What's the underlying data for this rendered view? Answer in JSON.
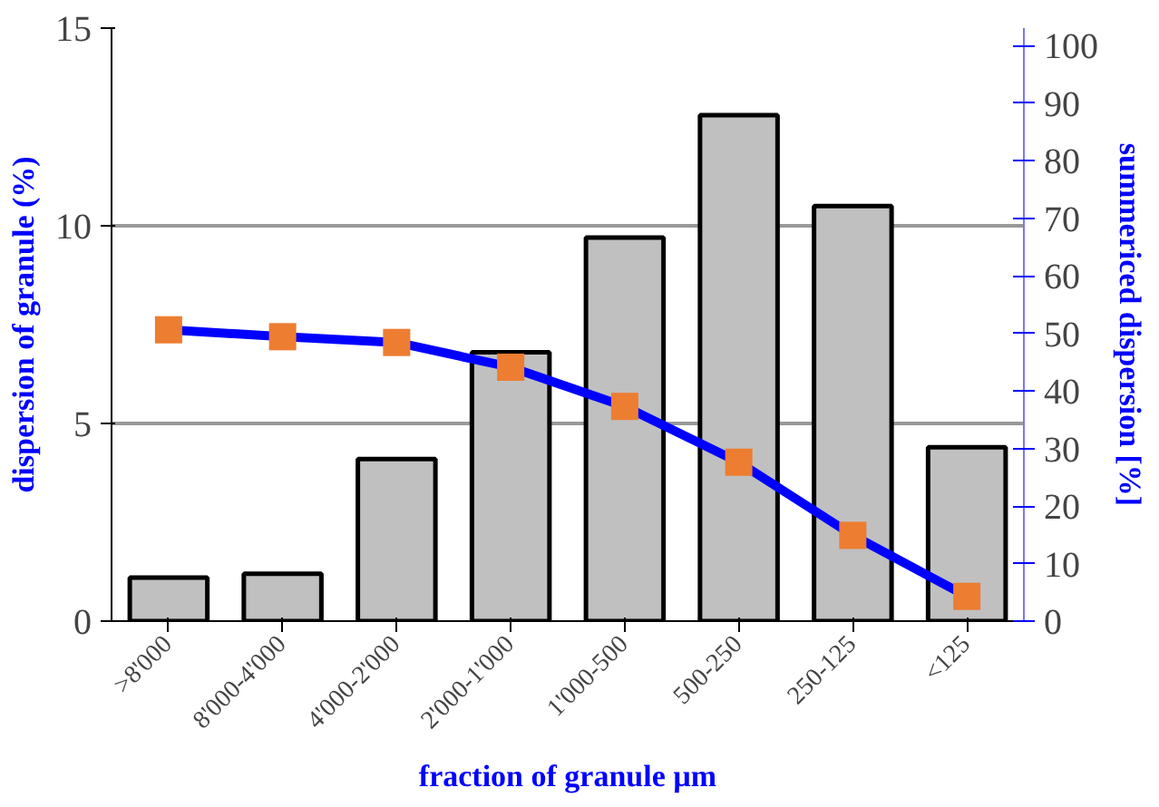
{
  "chart_data": {
    "type": "bar",
    "xlabel": "fraction of granule µm",
    "ylabel": "dispersion of granule (%)",
    "y2label": "summericed dispersion [%]",
    "categories": [
      ">8'000",
      "8'000-4'000",
      "4'000-2'000",
      "2'000-1'000",
      "1'000-500",
      "500-250",
      "250-125",
      "<125"
    ],
    "series": [
      {
        "color": "#c0c0c0",
        "values": [
          1.1,
          1.2,
          4.1,
          6.8,
          9.7,
          12.8,
          10.5,
          4.4
        ]
      },
      {
        "type": "line",
        "axis": "y2",
        "color": "#0000ff",
        "marker": "square",
        "colors": [
          "#ed7d31",
          "#ed7d31",
          "#ed7d31",
          "#ed7d31",
          "#ed7d31",
          "#ed7d31",
          "#ed7d31",
          "#ed7d31"
        ],
        "values": [
          50.6,
          49.4,
          48.4,
          44.1,
          37.3,
          27.6,
          14.9,
          4.3
        ]
      }
    ],
    "ylim": [
      0,
      15
    ],
    "yticks": [
      0,
      5,
      10,
      15
    ],
    "y2lim": [
      0,
      103
    ],
    "y2ticks": [
      0,
      10,
      20,
      30,
      40,
      50,
      60,
      70,
      80,
      90,
      100
    ],
    "grid": "y"
  }
}
